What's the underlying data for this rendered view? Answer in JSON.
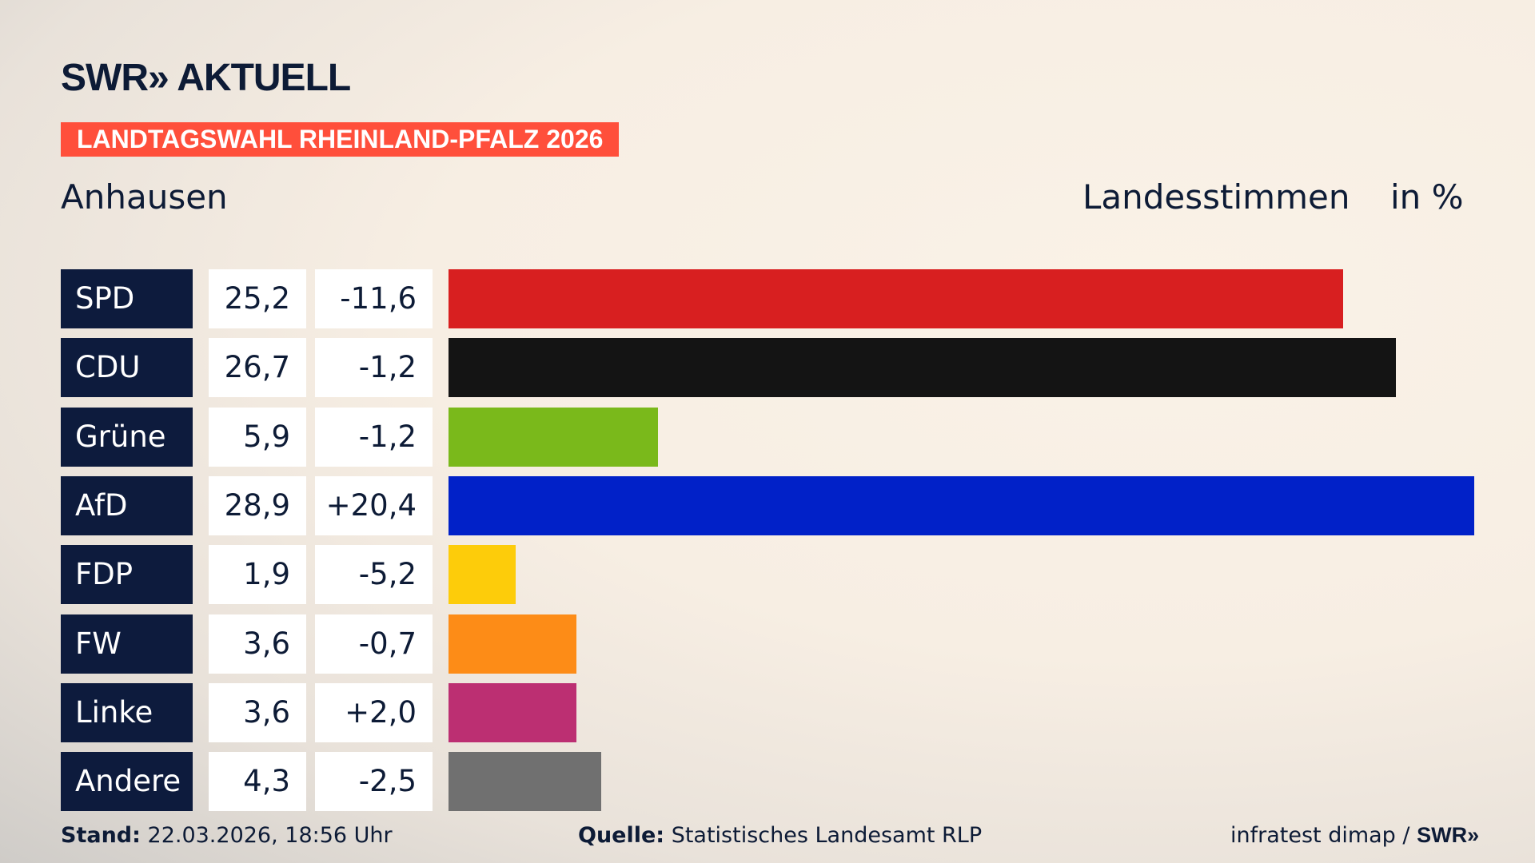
{
  "header": {
    "logo": "SWR» AKTUELL",
    "banner": "LANDTAGSWAHL RHEINLAND-PFALZ 2026",
    "place": "Anhausen",
    "vote_type": "Landesstimmen",
    "unit": "in %"
  },
  "chart_data": {
    "type": "bar",
    "orientation": "horizontal",
    "categories": [
      "SPD",
      "CDU",
      "Grüne",
      "AfD",
      "FDP",
      "FW",
      "Linke",
      "Andere"
    ],
    "values": [
      25.2,
      26.7,
      5.9,
      28.9,
      1.9,
      3.6,
      3.6,
      4.3
    ],
    "value_labels": [
      "25,2",
      "26,7",
      "5,9",
      "28,9",
      "1,9",
      "3,6",
      "3,6",
      "4,3"
    ],
    "diff_labels": [
      "-11,6",
      "-1,2",
      "-1,2",
      "+20,4",
      "-5,2",
      "-0,7",
      "+2,0",
      "-2,5"
    ],
    "colors": [
      "#d81f20",
      "#141414",
      "#7ab91b",
      "#0121c8",
      "#fdcc0a",
      "#fd8c17",
      "#bc2f72",
      "#707070"
    ],
    "xlim": [
      0,
      28.9
    ],
    "grid": false,
    "legend": "none"
  },
  "footer": {
    "stand_label": "Stand:",
    "stand_value": "22.03.2026, 18:56 Uhr",
    "source_label": "Quelle:",
    "source_value": "Statistisches Landesamt RLP",
    "credit": "infratest dimap / ",
    "credit_logo": "SWR»"
  }
}
